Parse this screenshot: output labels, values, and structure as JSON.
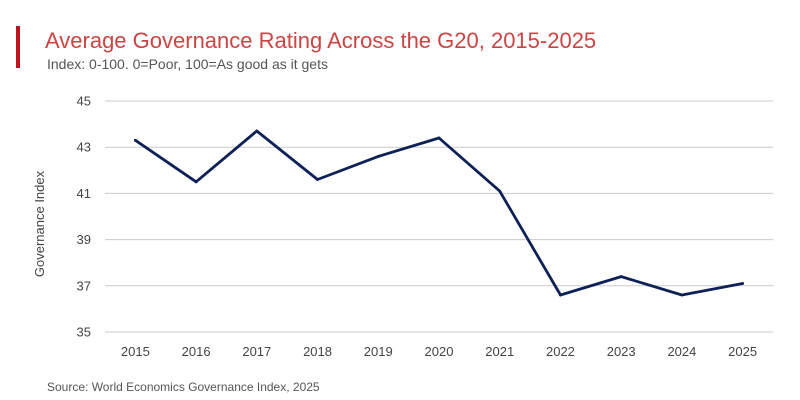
{
  "header": {
    "title": "Average Governance Rating Across the G20, 2015-2025",
    "subtitle": "Index: 0-100. 0=Poor, 100=As good as it gets"
  },
  "footer": {
    "source": "Source: World Economics Governance Index, 2025"
  },
  "colors": {
    "accent": "#c0141c",
    "title": "#cc4444",
    "line": "#0d2157",
    "grid": "#cccccc"
  },
  "chart_data": {
    "type": "line",
    "title": "Average Governance Rating Across the G20, 2015-2025",
    "subtitle": "Index: 0-100. 0=Poor, 100=As good as it gets",
    "xlabel": "",
    "ylabel": "Governance Index",
    "categories": [
      "2015",
      "2016",
      "2017",
      "2018",
      "2019",
      "2020",
      "2021",
      "2022",
      "2023",
      "2024",
      "2025"
    ],
    "values": [
      43.3,
      41.5,
      43.7,
      41.6,
      42.6,
      43.4,
      41.1,
      36.6,
      37.4,
      36.6,
      37.1
    ],
    "ylim": [
      35,
      45
    ],
    "yticks": [
      35,
      37,
      39,
      41,
      43,
      45
    ],
    "grid": true,
    "legend": "none"
  }
}
